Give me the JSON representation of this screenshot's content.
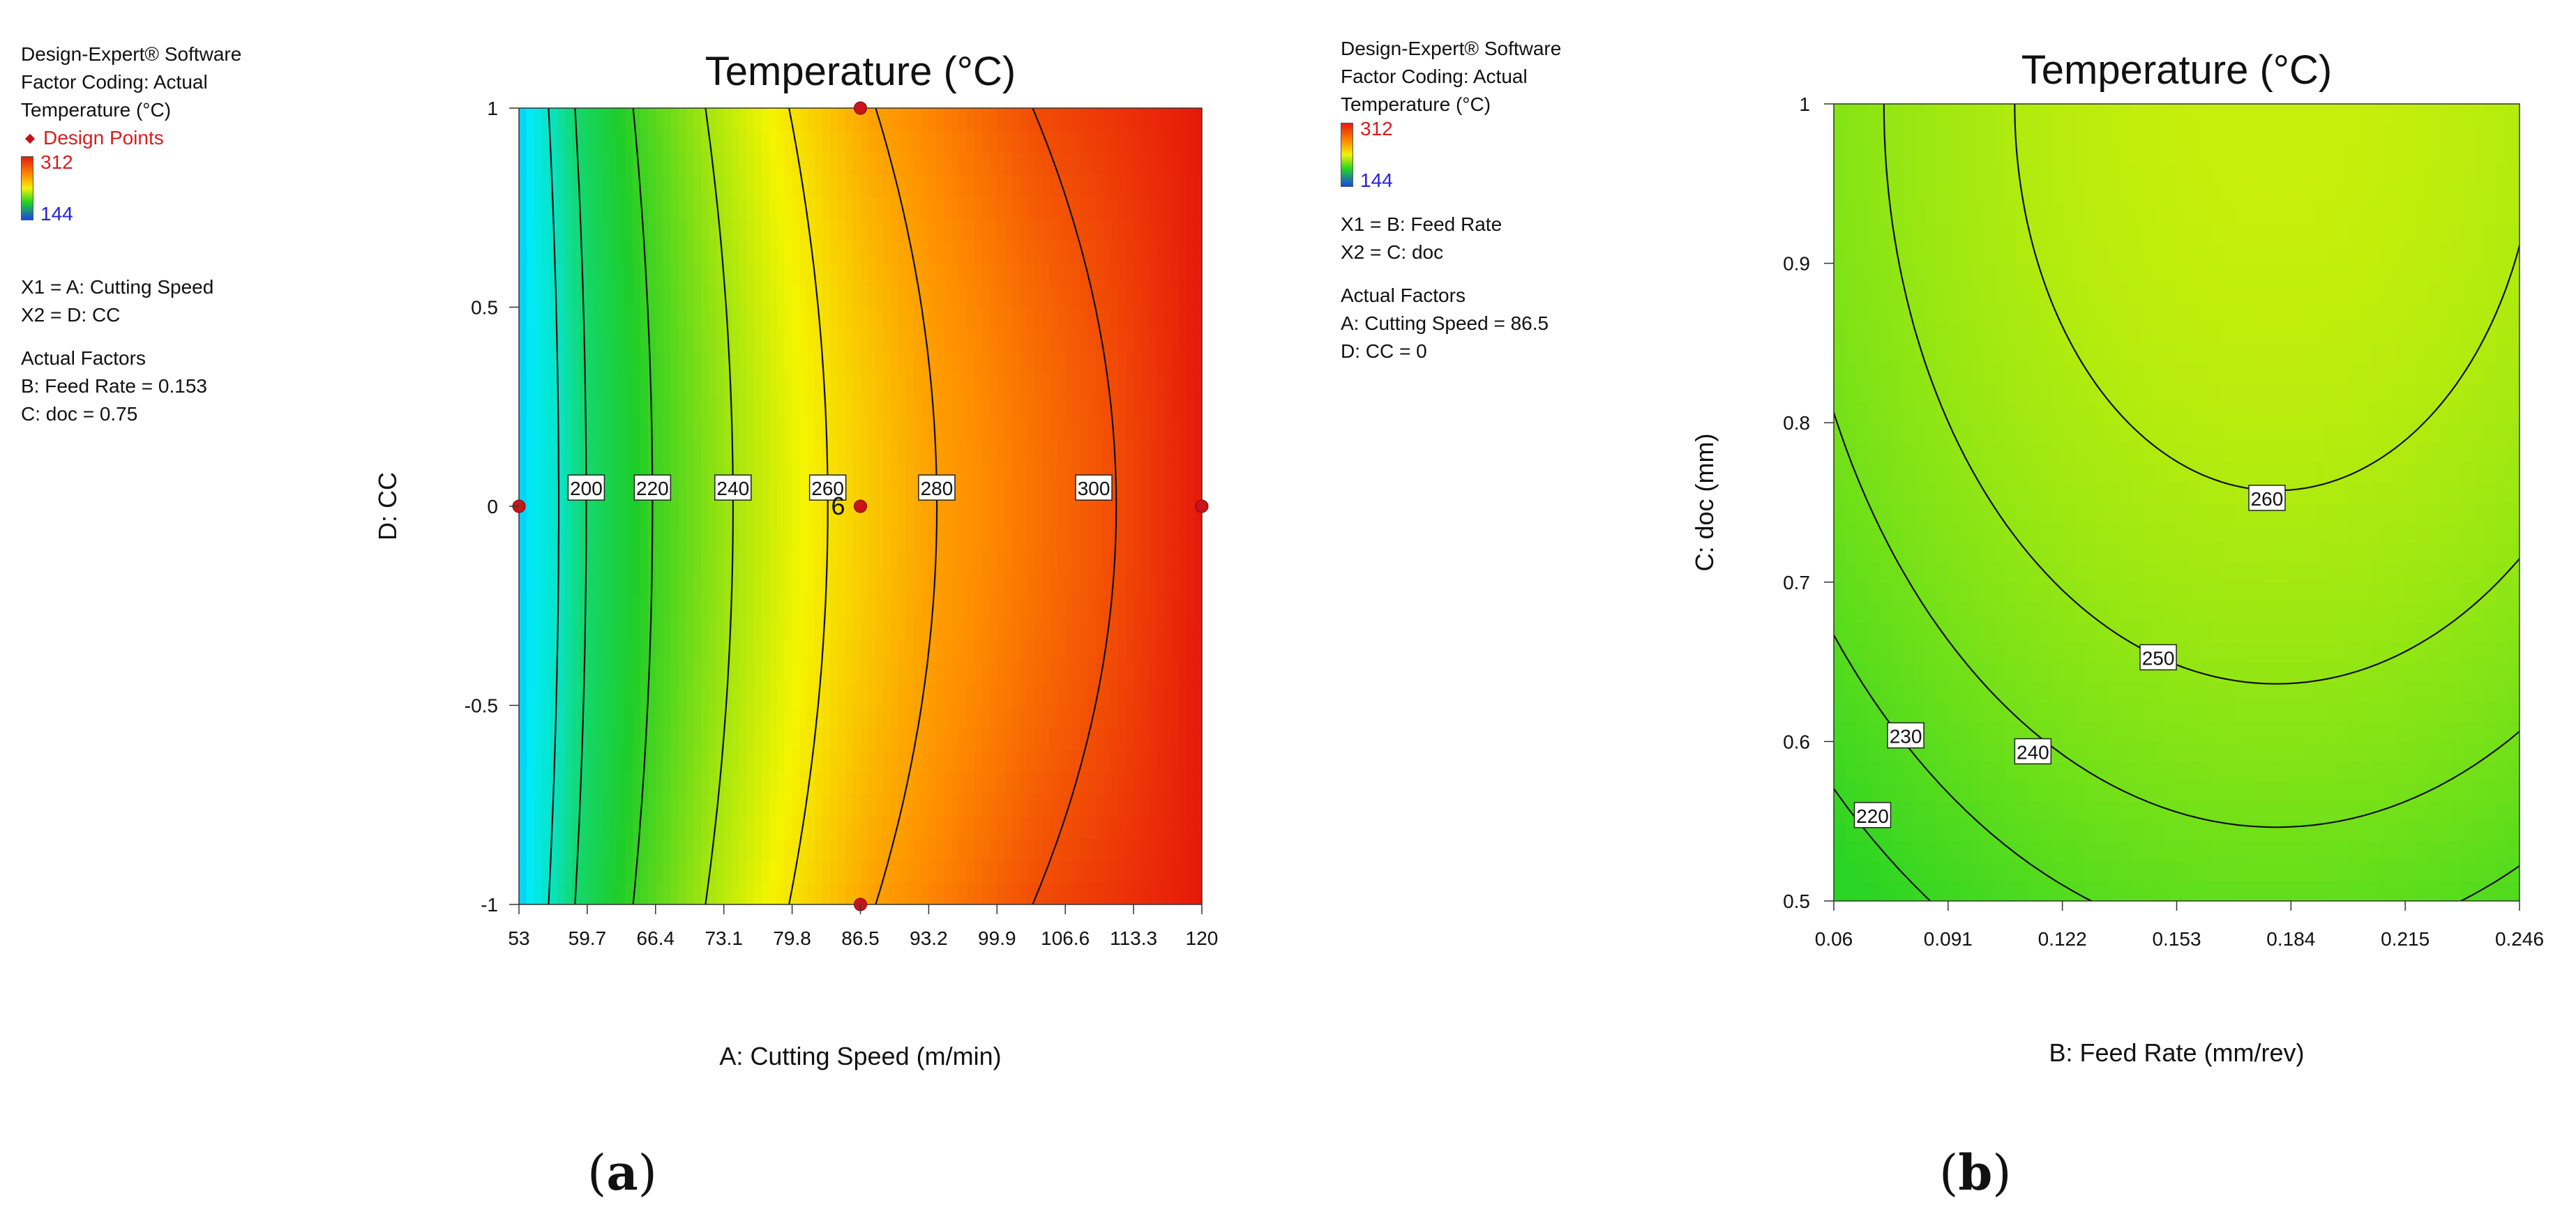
{
  "software": "Design-Expert® Software",
  "coding": "Factor Coding: Actual",
  "response": "Temperature (°C)",
  "colorbar": {
    "max": "312",
    "min": "144"
  },
  "panel_a": {
    "design_points_label": "Design Points",
    "x1_line": "X1 = A: Cutting Speed",
    "x2_line": "X2 = D: CC",
    "actual_factors_title": "Actual Factors",
    "actual_factors": [
      "B: Feed Rate = 0.153",
      "C: doc = 0.75"
    ],
    "caption_letter": "a"
  },
  "panel_b": {
    "x1_line": "X1 = B: Feed Rate",
    "x2_line": "X2 = C: doc",
    "actual_factors_title": "Actual Factors",
    "actual_factors": [
      "A: Cutting Speed = 86.5",
      "D: CC = 0"
    ],
    "caption_letter": "b"
  },
  "chart_data": [
    {
      "type": "contour",
      "title": "Temperature (°C)",
      "xlabel": "A: Cutting Speed (m/min)",
      "ylabel": "D: CC",
      "xlim": [
        53,
        120
      ],
      "ylim": [
        -1,
        1
      ],
      "xticks": [
        "53",
        "59.7",
        "66.4",
        "73.1",
        "79.8",
        "86.5",
        "93.2",
        "99.9",
        "106.6",
        "113.3",
        "120"
      ],
      "yticks": [
        "-1",
        "-0.5",
        "0",
        "0.5",
        "1"
      ],
      "colorscale": {
        "min": 144,
        "max": 312
      },
      "contours": [
        {
          "level": 180,
          "label": "",
          "x_at_edge": 55.9,
          "x_at_center": 56.9
        },
        {
          "level": 200,
          "label": "200",
          "x_at_edge": 58.5,
          "x_at_center": 59.6
        },
        {
          "level": 220,
          "label": "220",
          "x_at_edge": 64.2,
          "x_at_center": 66.1
        },
        {
          "level": 240,
          "label": "240",
          "x_at_edge": 71.3,
          "x_at_center": 74.0
        },
        {
          "level": 260,
          "label": "260",
          "x_at_edge": 79.5,
          "x_at_center": 83.3
        },
        {
          "level": 280,
          "label": "280",
          "x_at_edge": 88.0,
          "x_at_center": 94.0
        },
        {
          "level": 300,
          "label": "300",
          "x_at_edge": 103.4,
          "x_at_center": 111.6
        }
      ],
      "design_points": [
        {
          "x": 53,
          "y": 0,
          "count": ""
        },
        {
          "x": 86.5,
          "y": 1,
          "count": ""
        },
        {
          "x": 86.5,
          "y": 0,
          "count": "6"
        },
        {
          "x": 86.5,
          "y": -1,
          "count": ""
        },
        {
          "x": 120,
          "y": 0,
          "count": ""
        }
      ]
    },
    {
      "type": "contour",
      "title": "Temperature (°C)",
      "xlabel": "B: Feed Rate (mm/rev)",
      "ylabel": "C: doc (mm)",
      "xlim": [
        0.06,
        0.246
      ],
      "ylim": [
        0.5,
        1
      ],
      "xticks": [
        "0.06",
        "0.091",
        "0.122",
        "0.153",
        "0.184",
        "0.215",
        "0.246"
      ],
      "yticks": [
        "0.5",
        "0.6",
        "0.7",
        "0.8",
        "0.9",
        "1"
      ],
      "colorscale": {
        "min": 144,
        "max": 312
      },
      "contours": [
        {
          "level": 220,
          "label": "220"
        },
        {
          "level": 230,
          "label": "230"
        },
        {
          "level": 240,
          "label": "240"
        },
        {
          "level": 250,
          "label": "250"
        },
        {
          "level": 260,
          "label": "260"
        }
      ]
    }
  ]
}
